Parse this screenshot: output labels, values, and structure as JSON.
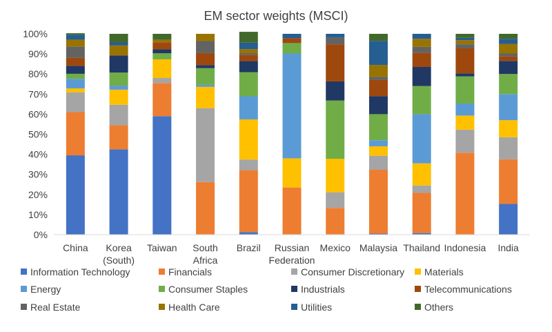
{
  "chart_data": {
    "type": "bar",
    "stacked": true,
    "title": "EM sector weights (MSCI)",
    "xlabel": "",
    "ylabel": "",
    "ylim": [
      0,
      1
    ],
    "yticks": [
      "0%",
      "10%",
      "20%",
      "30%",
      "40%",
      "50%",
      "60%",
      "70%",
      "80%",
      "90%",
      "100%"
    ],
    "grid": false,
    "legend_position": "bottom",
    "categories": [
      [
        "China"
      ],
      [
        "Korea",
        "(South)"
      ],
      [
        "Taiwan"
      ],
      [
        "South",
        "Africa"
      ],
      [
        "Brazil"
      ],
      [
        "Russian",
        "Federation"
      ],
      [
        "Mexico"
      ],
      [
        "Malaysia"
      ],
      [
        "Thailand"
      ],
      [
        "Indonesia"
      ],
      [
        "India"
      ]
    ],
    "series": [
      {
        "name": "Information Technology",
        "color": "#4472c4",
        "values": [
          0.395,
          0.425,
          0.59,
          0.0,
          0.013,
          0.0,
          0.0,
          0.005,
          0.008,
          0.0,
          0.153
        ]
      },
      {
        "name": "Financials",
        "color": "#ed7d31",
        "values": [
          0.215,
          0.12,
          0.165,
          0.262,
          0.308,
          0.235,
          0.133,
          0.318,
          0.2,
          0.408,
          0.222
        ]
      },
      {
        "name": "Consumer Discretionary",
        "color": "#a5a5a5",
        "values": [
          0.098,
          0.102,
          0.025,
          0.368,
          0.053,
          0.0,
          0.078,
          0.07,
          0.037,
          0.115,
          0.11
        ]
      },
      {
        "name": "Materials",
        "color": "#ffc000",
        "values": [
          0.02,
          0.075,
          0.093,
          0.106,
          0.2,
          0.145,
          0.167,
          0.047,
          0.11,
          0.07,
          0.085
        ]
      },
      {
        "name": "Energy",
        "color": "#5b9bd5",
        "values": [
          0.048,
          0.02,
          0.0,
          0.01,
          0.115,
          0.522,
          0.0,
          0.03,
          0.245,
          0.06,
          0.13
        ]
      },
      {
        "name": "Consumer Staples",
        "color": "#70ad47",
        "values": [
          0.025,
          0.065,
          0.03,
          0.083,
          0.12,
          0.052,
          0.29,
          0.13,
          0.14,
          0.135,
          0.1
        ]
      },
      {
        "name": "Industrials",
        "color": "#203864",
        "values": [
          0.04,
          0.085,
          0.02,
          0.015,
          0.055,
          0.0,
          0.095,
          0.09,
          0.095,
          0.015,
          0.065
        ]
      },
      {
        "name": "Telecommunications",
        "color": "#9e480e",
        "values": [
          0.04,
          0.0,
          0.035,
          0.06,
          0.03,
          0.024,
          0.185,
          0.08,
          0.07,
          0.125,
          0.022
        ]
      },
      {
        "name": "Real Estate",
        "color": "#636363",
        "values": [
          0.055,
          0.0,
          0.0,
          0.06,
          0.01,
          0.0,
          0.035,
          0.015,
          0.03,
          0.02,
          0.015
        ]
      },
      {
        "name": "Health Care",
        "color": "#997300",
        "values": [
          0.035,
          0.05,
          0.012,
          0.036,
          0.02,
          0.0,
          0.0,
          0.06,
          0.04,
          0.02,
          0.048
        ]
      },
      {
        "name": "Utilities",
        "color": "#255e91",
        "values": [
          0.025,
          0.015,
          0.0,
          0.0,
          0.032,
          0.022,
          0.017,
          0.12,
          0.025,
          0.012,
          0.025
        ]
      },
      {
        "name": "Others",
        "color": "#43682b",
        "values": [
          0.007,
          0.043,
          0.03,
          0.0,
          0.054,
          0.0,
          0.0,
          0.035,
          0.0,
          0.02,
          0.025
        ]
      }
    ]
  }
}
